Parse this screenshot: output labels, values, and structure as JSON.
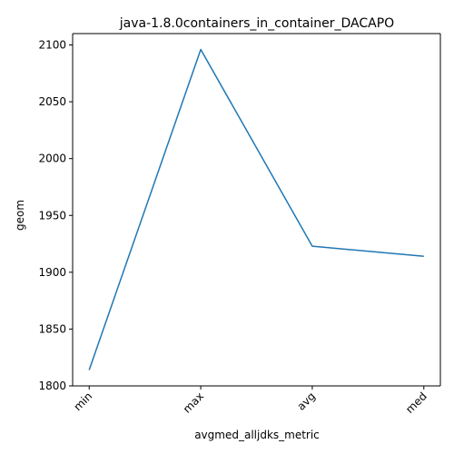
{
  "chart_data": {
    "type": "line",
    "title": "java-1.8.0containers_in_container_DACAPO",
    "xlabel": "avgmed_alljdks_metric",
    "ylabel": "geom",
    "categories": [
      "min",
      "max",
      "avg",
      "med"
    ],
    "series": [
      {
        "values": [
          1814,
          2096,
          1923,
          1914
        ],
        "color": "#1f77b4"
      }
    ],
    "ylim": [
      1800,
      2110
    ],
    "yticks": [
      1800,
      1850,
      1900,
      1950,
      2000,
      2050,
      2100
    ],
    "grid": false,
    "legend": "none"
  }
}
